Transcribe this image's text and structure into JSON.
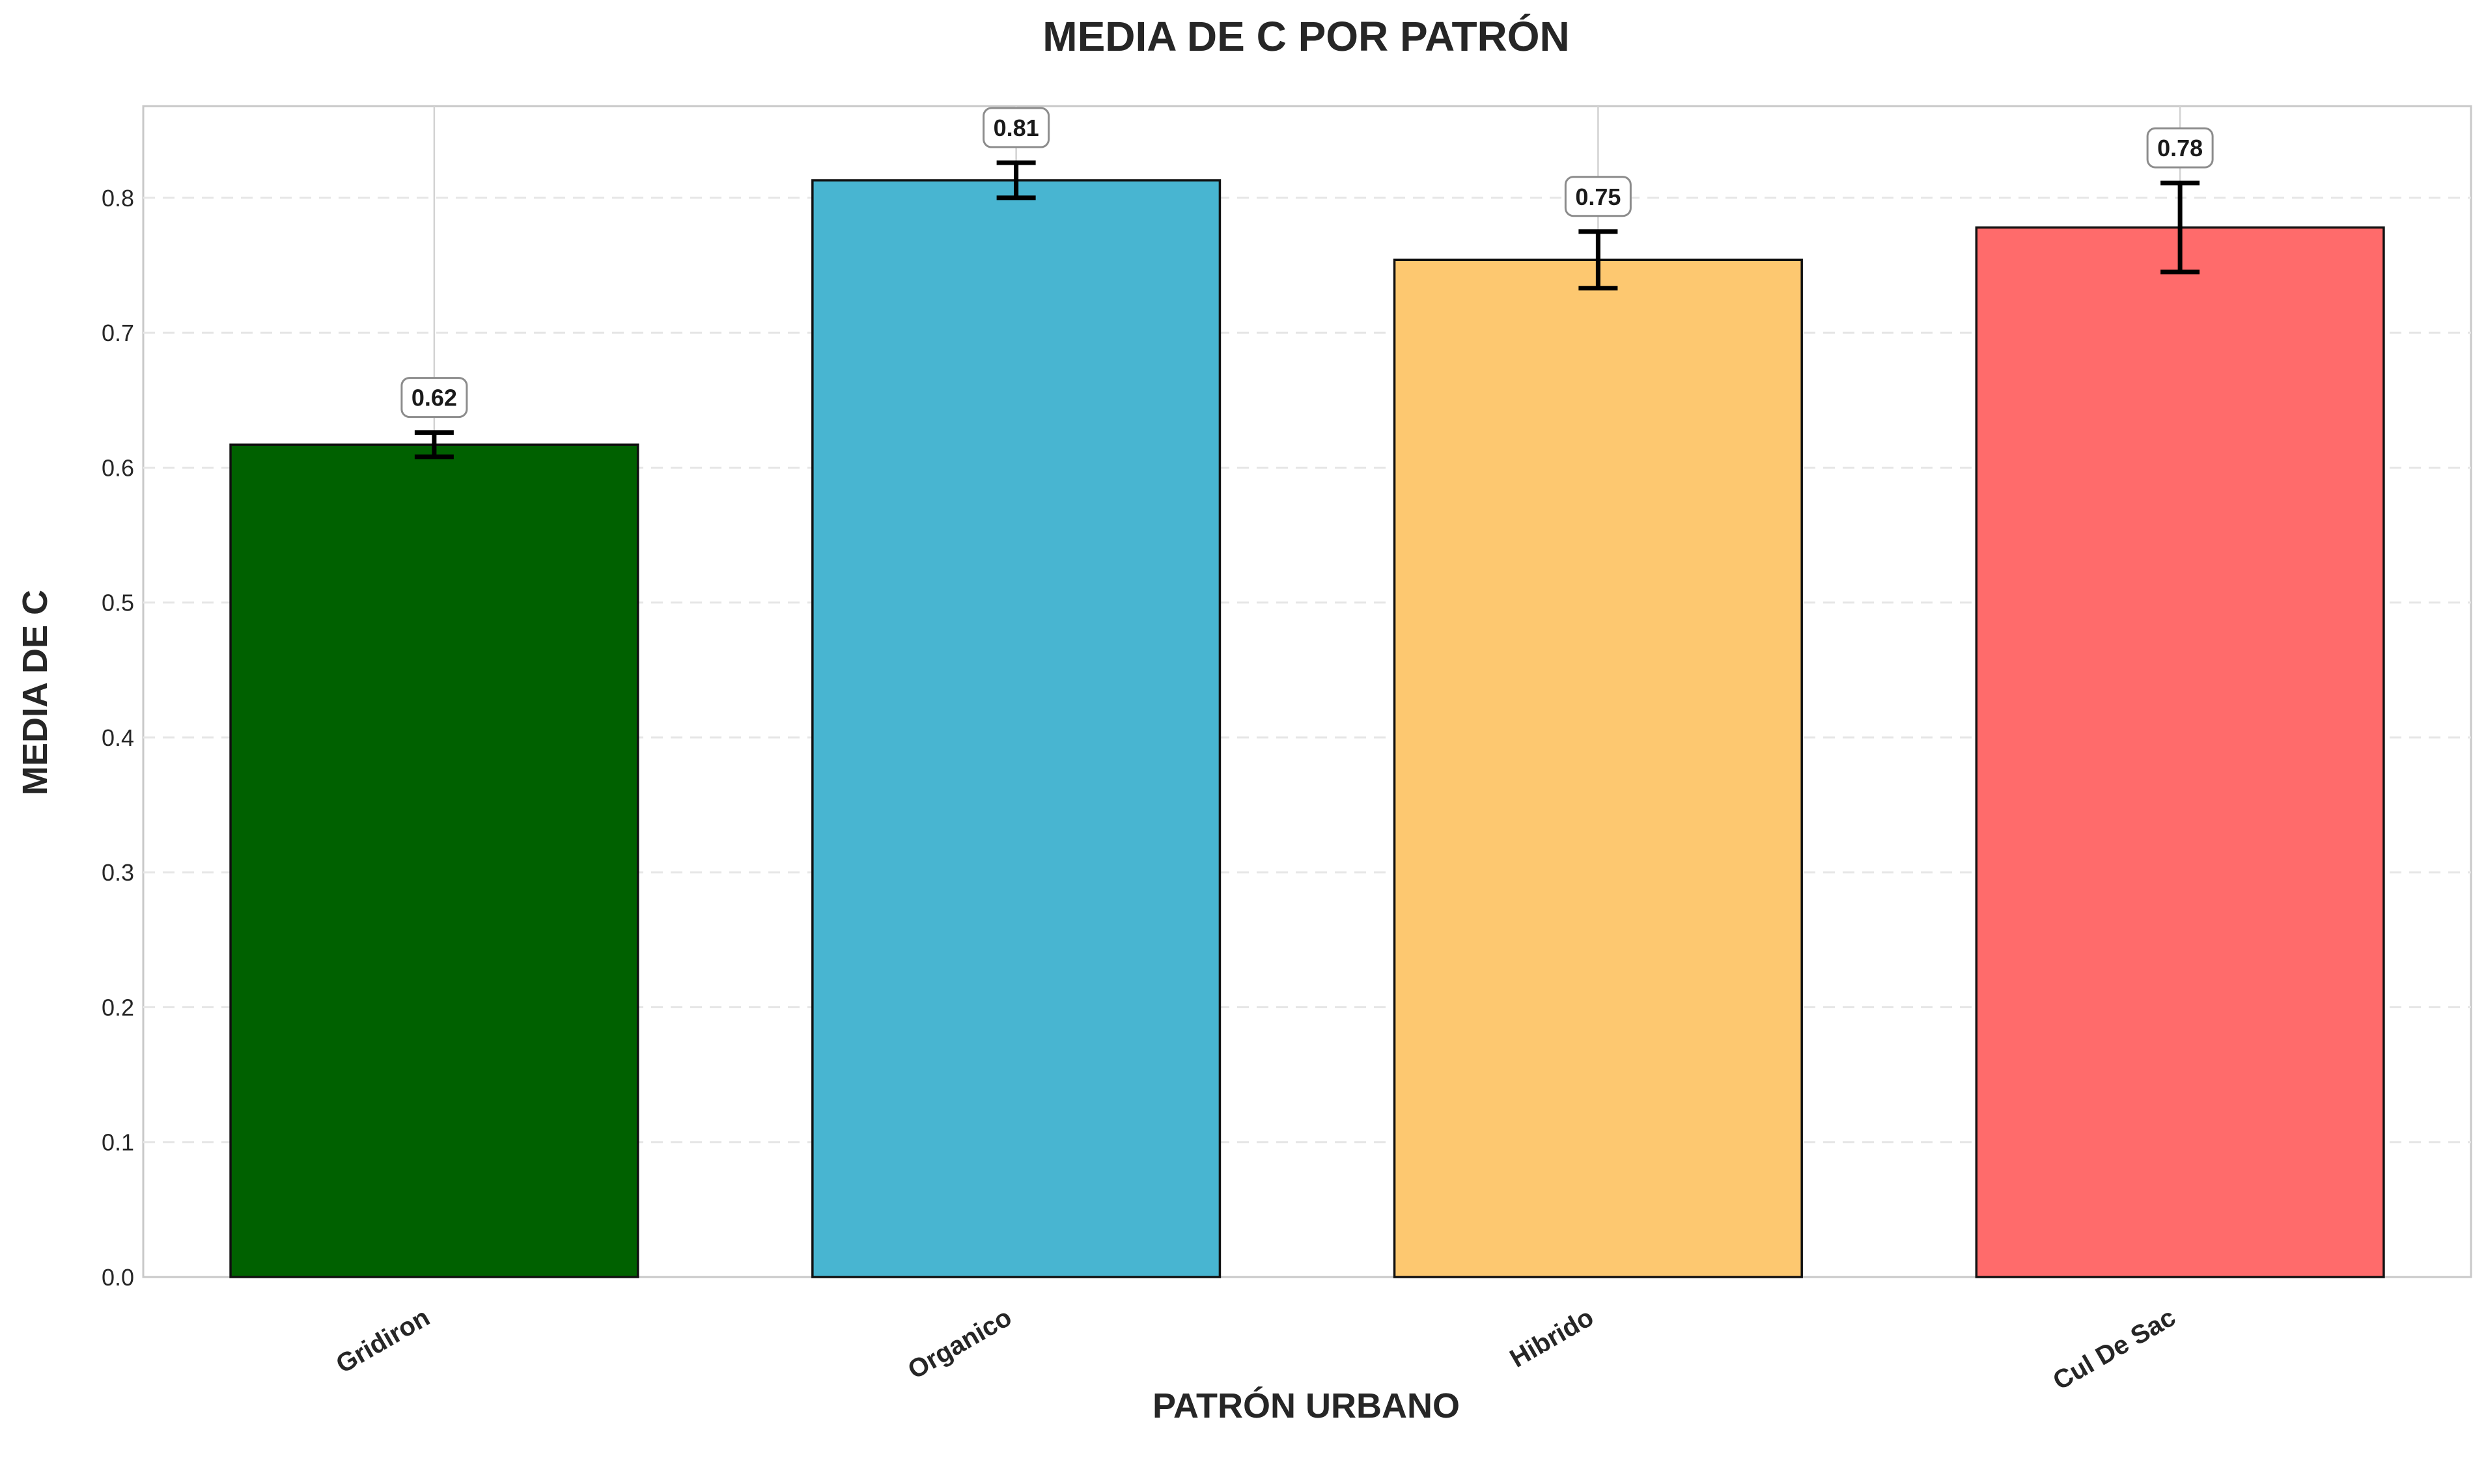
{
  "chart_data": {
    "type": "bar",
    "title": "MEDIA DE C POR PATRÓN",
    "xlabel": "PATRÓN URBANO",
    "ylabel": "MEDIA DE C",
    "categories": [
      "Gridiron",
      "Organico",
      "Hibrido",
      "Cul De Sac"
    ],
    "values": [
      0.617,
      0.813,
      0.754,
      0.778
    ],
    "errors": [
      0.009,
      0.013,
      0.021,
      0.033
    ],
    "data_labels": [
      "0.62",
      "0.81",
      "0.75",
      "0.78"
    ],
    "colors": [
      "#006100",
      "#48B5D1",
      "#FDC870",
      "#FF6B6B"
    ],
    "ylim": [
      0,
      0.868
    ],
    "yticks": [
      0.0,
      0.1,
      0.2,
      0.3,
      0.4,
      0.5,
      0.6,
      0.7,
      0.8
    ],
    "ytick_labels": [
      "0.0",
      "0.1",
      "0.2",
      "0.3",
      "0.4",
      "0.5",
      "0.6",
      "0.7",
      "0.8"
    ],
    "grid": "y-dashed"
  }
}
